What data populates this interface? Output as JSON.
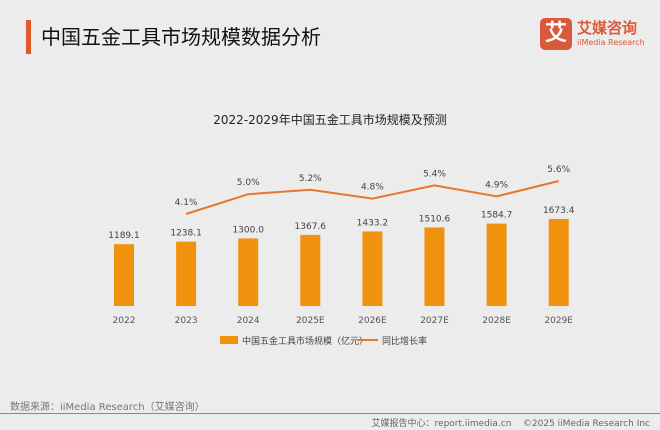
{
  "header": {
    "title": "中国五金工具市场规模数据分析",
    "logo_mark": "艾",
    "logo_cn": "艾媒咨询",
    "logo_en": "iiMedia Research"
  },
  "chart_data": {
    "type": "bar+line",
    "title": "2022-2029年中国五金工具市场规模及预测",
    "categories": [
      "2022",
      "2023",
      "2024",
      "2025E",
      "2026E",
      "2027E",
      "2028E",
      "2029E"
    ],
    "series": [
      {
        "name": "中国五金工具市场规模（亿元）",
        "type": "bar",
        "values": [
          1189.1,
          1238.1,
          1300.0,
          1367.6,
          1433.2,
          1510.6,
          1584.7,
          1673.4
        ],
        "labels": [
          "1189.1",
          "1238.1",
          "1300.0",
          "1367.6",
          "1433.2",
          "1510.6",
          "1584.7",
          "1673.4"
        ],
        "color": "#f0920e"
      },
      {
        "name": "同比增长率",
        "type": "line",
        "values": [
          null,
          4.1,
          5.0,
          5.2,
          4.8,
          5.4,
          4.9,
          5.6
        ],
        "labels": [
          "",
          "4.1%",
          "5.0%",
          "5.2%",
          "4.8%",
          "5.4%",
          "4.9%",
          "5.6%"
        ],
        "color": "#e8762c"
      }
    ],
    "grid": false,
    "legend": "bottom"
  },
  "footer": {
    "source": "数据来源：iiMedia Research（艾媒咨询）",
    "report": "艾媒报告中心：report.iimedia.cn",
    "copyright": "©2025  iiMedia Research  Inc"
  }
}
